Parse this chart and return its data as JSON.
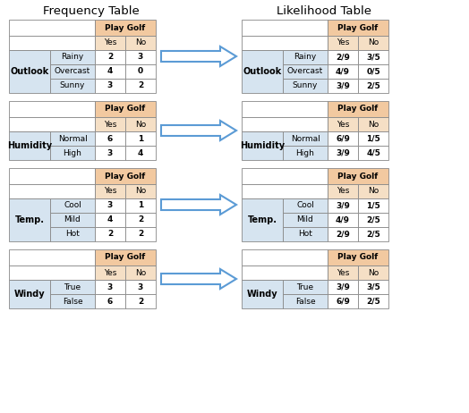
{
  "title_left": "Frequency Table",
  "title_right": "Likelihood Table",
  "header_color": "#f2c9a0",
  "subheader_color": "#f5dfc5",
  "row_color": "#d6e4f0",
  "white_color": "#ffffff",
  "border_color": "#888888",
  "arrow_facecolor": "#5b9bd5",
  "arrow_edgecolor": "#4a8ac4",
  "tables": [
    {
      "label": "Outlook",
      "rows": [
        "Sunny",
        "Overcast",
        "Rainy"
      ],
      "freq_yes": [
        "3",
        "4",
        "2"
      ],
      "freq_no": [
        "2",
        "0",
        "3"
      ],
      "like_yes": [
        "3/9",
        "4/9",
        "2/9"
      ],
      "like_no": [
        "2/5",
        "0/5",
        "3/5"
      ]
    },
    {
      "label": "Humidity",
      "rows": [
        "High",
        "Normal"
      ],
      "freq_yes": [
        "3",
        "6"
      ],
      "freq_no": [
        "4",
        "1"
      ],
      "like_yes": [
        "3/9",
        "6/9"
      ],
      "like_no": [
        "4/5",
        "1/5"
      ]
    },
    {
      "label": "Temp.",
      "rows": [
        "Hot",
        "Mild",
        "Cool"
      ],
      "freq_yes": [
        "2",
        "4",
        "3"
      ],
      "freq_no": [
        "2",
        "2",
        "1"
      ],
      "like_yes": [
        "2/9",
        "4/9",
        "3/9"
      ],
      "like_no": [
        "2/5",
        "2/5",
        "1/5"
      ]
    },
    {
      "label": "Windy",
      "rows": [
        "False",
        "True"
      ],
      "freq_yes": [
        "6",
        "3"
      ],
      "freq_no": [
        "2",
        "3"
      ],
      "like_yes": [
        "6/9",
        "3/9"
      ],
      "like_no": [
        "2/5",
        "3/5"
      ]
    }
  ]
}
